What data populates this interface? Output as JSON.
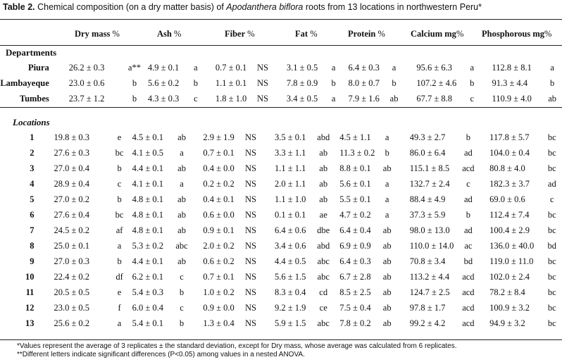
{
  "caption": {
    "label": "Table 2.",
    "text_a": "Chemical composition (on a dry matter basis) of",
    "species": "Apodanthera biflora",
    "text_b": "roots from 13 locations in northwestern Peru*"
  },
  "headers": {
    "dry_mass": "Dry mass",
    "ash": "Ash",
    "fiber": "Fiber",
    "fat": "Fat",
    "protein": "Protein",
    "calcium": "Calcium mg",
    "phosphorous": "Phosphorous mg",
    "pct": "%"
  },
  "sections": {
    "departments": "Departments",
    "locations": "Locations"
  },
  "departments": [
    {
      "name": "Piura",
      "dm": "26.2 ± 0.3",
      "dm_l": "a**",
      "ash": "4.9 ± 0.1",
      "ash_l": "a",
      "fib": "0.7 ± 0.1",
      "fib_l": "NS",
      "fat": "3.1 ± 0.5",
      "fat_l": "a",
      "pro": "6.4 ± 0.3",
      "pro_l": "a",
      "cal": "95.6 ± 6.3",
      "cal_l": "a",
      "pho": "112.8 ± 8.1",
      "pho_l": "a"
    },
    {
      "name": "Lambayeque",
      "dm": "23.0 ± 0.6",
      "dm_l": "b",
      "ash": "5.6 ± 0.2",
      "ash_l": "b",
      "fib": "1.1 ± 0.1",
      "fib_l": "NS",
      "fat": "7.8 ± 0.9",
      "fat_l": "b",
      "pro": "8.0 ± 0.7",
      "pro_l": "b",
      "cal": "107.2 ± 4.6",
      "cal_l": "b",
      "pho": "91.3 ± 4.4",
      "pho_l": "b"
    },
    {
      "name": "Tumbes",
      "dm": "23.7 ± 1.2",
      "dm_l": "b",
      "ash": "4.3 ± 0.3",
      "ash_l": "c",
      "fib": "1.8 ± 1.0",
      "fib_l": "NS",
      "fat": "3.4 ± 0.5",
      "fat_l": "a",
      "pro": "7.9 ± 1.6",
      "pro_l": "ab",
      "cal": "67.7 ± 8.8",
      "cal_l": "c",
      "pho": "110.9 ± 4.0",
      "pho_l": "ab"
    }
  ],
  "locations": [
    {
      "name": "1",
      "dm": "19.8 ± 0.3",
      "dm_l": "e",
      "ash": "4.5 ± 0.1",
      "ash_l": "ab",
      "fib": "2.9 ± 1.9",
      "fib_l": "NS",
      "fat": "3.5 ± 0.1",
      "fat_l": "abd",
      "pro": "4.5 ± 1.1",
      "pro_l": "a",
      "cal": "49.3 ± 2.7",
      "cal_l": "b",
      "pho": "117.8 ± 5.7",
      "pho_l": "bc"
    },
    {
      "name": "2",
      "dm": "27.6 ± 0.3",
      "dm_l": "bc",
      "ash": "4.1 ± 0.5",
      "ash_l": "a",
      "fib": "0.7 ± 0.1",
      "fib_l": "NS",
      "fat": "3.3 ± 1.1",
      "fat_l": "ab",
      "pro": "11.3 ± 0.2",
      "pro_l": "b",
      "cal": "86.0 ± 6.4",
      "cal_l": "ad",
      "pho": "104.0 ± 0.4",
      "pho_l": "bc"
    },
    {
      "name": "3",
      "dm": "27.0 ± 0.4",
      "dm_l": "b",
      "ash": "4.4 ± 0.1",
      "ash_l": "ab",
      "fib": "0.4 ± 0.0",
      "fib_l": "NS",
      "fat": "1.1 ± 1.1",
      "fat_l": "ab",
      "pro": "8.8 ± 0.1",
      "pro_l": "ab",
      "cal": "115.1 ± 8.5",
      "cal_l": "acd",
      "pho": "80.8 ± 4.0",
      "pho_l": "bc"
    },
    {
      "name": "4",
      "dm": "28.9 ± 0.4",
      "dm_l": "c",
      "ash": "4.1 ± 0.1",
      "ash_l": "a",
      "fib": "0.2 ± 0.2",
      "fib_l": "NS",
      "fat": "2.0 ± 1.1",
      "fat_l": "ab",
      "pro": "5.6 ± 0.1",
      "pro_l": "a",
      "cal": "132.7 ± 2.4",
      "cal_l": "c",
      "pho": "182.3 ± 3.7",
      "pho_l": "ad"
    },
    {
      "name": "5",
      "dm": "27.0 ± 0.2",
      "dm_l": "b",
      "ash": "4.8 ± 0.1",
      "ash_l": "ab",
      "fib": "0.4 ± 0.1",
      "fib_l": "NS",
      "fat": "1.1 ± 1.0",
      "fat_l": "ab",
      "pro": "5.5 ± 0.1",
      "pro_l": "a",
      "cal": "88.4 ± 4.9",
      "cal_l": "ad",
      "pho": "69.0 ± 0.6",
      "pho_l": "c"
    },
    {
      "name": "6",
      "dm": "27.6 ± 0.4",
      "dm_l": "bc",
      "ash": "4.8 ± 0.1",
      "ash_l": "ab",
      "fib": "0.6 ± 0.0",
      "fib_l": "NS",
      "fat": "0.1 ± 0.1",
      "fat_l": "ae",
      "pro": "4.7 ± 0.2",
      "pro_l": "a",
      "cal": "37.3 ± 5.9",
      "cal_l": "b",
      "pho": "112.4 ± 7.4",
      "pho_l": "bc"
    },
    {
      "name": "7",
      "dm": "24.5 ± 0.2",
      "dm_l": "af",
      "ash": "4.8 ± 0.1",
      "ash_l": "ab",
      "fib": "0.9 ± 0.1",
      "fib_l": "NS",
      "fat": "6.4 ± 0.6",
      "fat_l": "dbe",
      "pro": "6.4 ± 0.4",
      "pro_l": "ab",
      "cal": "98.0 ± 13.0",
      "cal_l": "ad",
      "pho": "100.4 ± 2.9",
      "pho_l": "bc"
    },
    {
      "name": "8",
      "dm": "25.0 ± 0.1",
      "dm_l": "a",
      "ash": "5.3 ± 0.2",
      "ash_l": "abc",
      "fib": "2.0 ± 0.2",
      "fib_l": "NS",
      "fat": "3.4 ± 0.6",
      "fat_l": "abd",
      "pro": "6.9 ± 0.9",
      "pro_l": "ab",
      "cal": "110.0 ± 14.0",
      "cal_l": "ac",
      "pho": "136.0 ± 40.0",
      "pho_l": "bd"
    },
    {
      "name": "9",
      "dm": "27.0 ± 0.3",
      "dm_l": "b",
      "ash": "4.4 ± 0.1",
      "ash_l": "ab",
      "fib": "0.6 ± 0.2",
      "fib_l": "NS",
      "fat": "4.4 ± 0.5",
      "fat_l": "abc",
      "pro": "6.4 ± 0.3",
      "pro_l": "ab",
      "cal": "70.8 ± 3.4",
      "cal_l": "bd",
      "pho": "119.0 ± 11.0",
      "pho_l": "bc"
    },
    {
      "name": "10",
      "dm": "22.4 ± 0.2",
      "dm_l": "df",
      "ash": "6.2 ± 0.1",
      "ash_l": "c",
      "fib": "0.7 ± 0.1",
      "fib_l": "NS",
      "fat": "5.6 ± 1.5",
      "fat_l": "abc",
      "pro": "6.7 ± 2.8",
      "pro_l": "ab",
      "cal": "113.2 ± 4.4",
      "cal_l": "acd",
      "pho": "102.0 ± 2.4",
      "pho_l": "bc"
    },
    {
      "name": "11",
      "dm": "20.5 ± 0.5",
      "dm_l": "e",
      "ash": "5.4 ± 0.3",
      "ash_l": "b",
      "fib": "1.0 ± 0.2",
      "fib_l": "NS",
      "fat": "8.3 ± 0.4",
      "fat_l": "cd",
      "pro": "8.5 ± 2.5",
      "pro_l": "ab",
      "cal": "124.7 ± 2.5",
      "cal_l": "acd",
      "pho": "78.2 ± 8.4",
      "pho_l": "bc"
    },
    {
      "name": "12",
      "dm": "23.0 ± 0.5",
      "dm_l": "f",
      "ash": "6.0 ± 0.4",
      "ash_l": "c",
      "fib": "0.9 ± 0.0",
      "fib_l": "NS",
      "fat": "9.2 ± 1.9",
      "fat_l": "ce",
      "pro": "7.5 ± 0.4",
      "pro_l": "ab",
      "cal": "97.8 ± 1.7",
      "cal_l": "acd",
      "pho": "100.9 ± 3.2",
      "pho_l": "bc"
    },
    {
      "name": "13",
      "dm": "25.6 ± 0.2",
      "dm_l": "a",
      "ash": "5.4 ± 0.1",
      "ash_l": "b",
      "fib": "1.3 ± 0.4",
      "fib_l": "NS",
      "fat": "5.9 ± 1.5",
      "fat_l": "abc",
      "pro": "7.8 ± 0.2",
      "pro_l": "ab",
      "cal": "99.2 ± 4.2",
      "cal_l": "acd",
      "pho": "94.9 ± 3.2",
      "pho_l": "bc"
    }
  ],
  "footnotes": {
    "note1": "*Values represent the average of 3 replicates  ±  the standard deviation, except for Dry mass, whose average was calculated from 6 replicates.",
    "note2": "**Different letters indicate significant differences (P<0.05) among values in a nested ANOVA."
  }
}
